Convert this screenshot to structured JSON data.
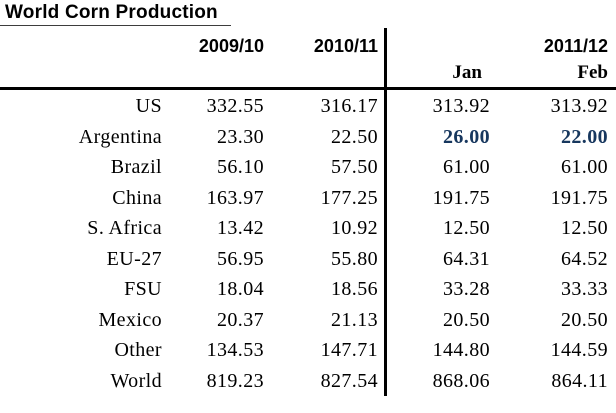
{
  "title": "World Corn Production",
  "header": {
    "col_2009_10": "2009/10",
    "col_2010_11": "2010/11",
    "col_2011_12": "2011/12",
    "sub_jan": "Jan",
    "sub_feb": "Feb"
  },
  "rows": [
    {
      "label": "US",
      "y2009_10": "332.55",
      "y2010_11": "316.17",
      "jan": "313.92",
      "feb": "313.92",
      "highlight": false
    },
    {
      "label": "Argentina",
      "y2009_10": "23.30",
      "y2010_11": "22.50",
      "jan": "26.00",
      "feb": "22.00",
      "highlight": true
    },
    {
      "label": "Brazil",
      "y2009_10": "56.10",
      "y2010_11": "57.50",
      "jan": "61.00",
      "feb": "61.00",
      "highlight": false
    },
    {
      "label": "China",
      "y2009_10": "163.97",
      "y2010_11": "177.25",
      "jan": "191.75",
      "feb": "191.75",
      "highlight": false
    },
    {
      "label": "S. Africa",
      "y2009_10": "13.42",
      "y2010_11": "10.92",
      "jan": "12.50",
      "feb": "12.50",
      "highlight": false
    },
    {
      "label": "EU-27",
      "y2009_10": "56.95",
      "y2010_11": "55.80",
      "jan": "64.31",
      "feb": "64.52",
      "highlight": false
    },
    {
      "label": "FSU",
      "y2009_10": "18.04",
      "y2010_11": "18.56",
      "jan": "33.28",
      "feb": "33.33",
      "highlight": false
    },
    {
      "label": "Mexico",
      "y2009_10": "20.37",
      "y2010_11": "21.13",
      "jan": "20.50",
      "feb": "20.50",
      "highlight": false
    },
    {
      "label": "Other",
      "y2009_10": "134.53",
      "y2010_11": "147.71",
      "jan": "144.80",
      "feb": "144.59",
      "highlight": false
    },
    {
      "label": "World",
      "y2009_10": "819.23",
      "y2010_11": "827.54",
      "jan": "868.06",
      "feb": "864.11",
      "highlight": false
    }
  ],
  "colors": {
    "highlight_value": "#17375E",
    "text": "#000000",
    "rule": "#000000"
  }
}
